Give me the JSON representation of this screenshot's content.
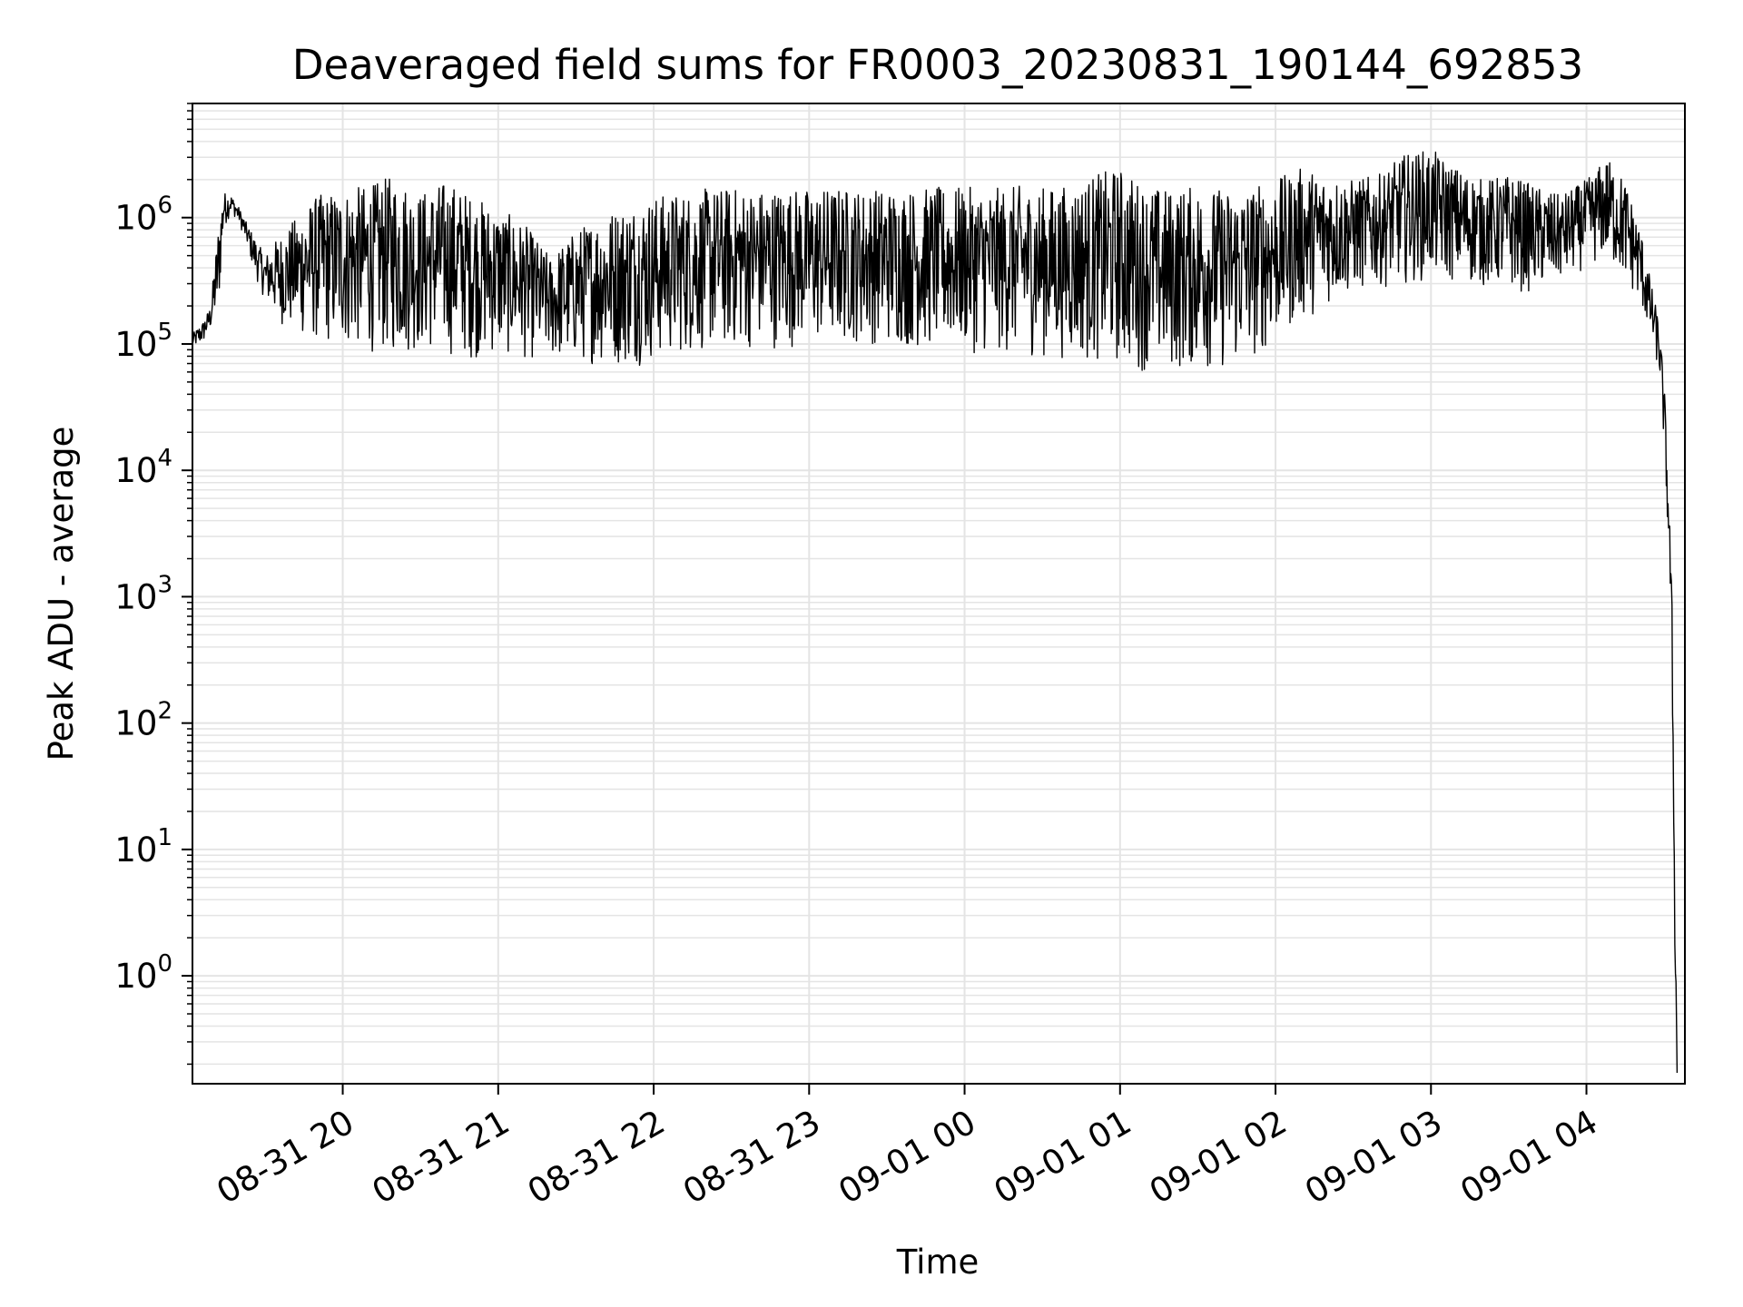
{
  "chart_data": {
    "type": "line",
    "title": "Deaveraged field sums for FR0003_20230831_190144_692853",
    "xlabel": "Time",
    "ylabel": "Peak ADU - average",
    "yscale": "log",
    "ylim": [
      0.14,
      8000000
    ],
    "xlim": [
      "2023-08-31 19:02",
      "2023-09-01 04:38"
    ],
    "grid": true,
    "y_ticks": [
      {
        "base": "10",
        "exp": "0",
        "value": 1
      },
      {
        "base": "10",
        "exp": "1",
        "value": 10
      },
      {
        "base": "10",
        "exp": "2",
        "value": 100
      },
      {
        "base": "10",
        "exp": "3",
        "value": 1000
      },
      {
        "base": "10",
        "exp": "4",
        "value": 10000
      },
      {
        "base": "10",
        "exp": "5",
        "value": 100000
      },
      {
        "base": "10",
        "exp": "6",
        "value": 1000000
      }
    ],
    "x_ticks": [
      {
        "label": "08-31 20",
        "time": "2023-08-31 20:00"
      },
      {
        "label": "08-31 21",
        "time": "2023-08-31 21:00"
      },
      {
        "label": "08-31 22",
        "time": "2023-08-31 22:00"
      },
      {
        "label": "08-31 23",
        "time": "2023-08-31 23:00"
      },
      {
        "label": "09-01 00",
        "time": "2023-09-01 00:00"
      },
      {
        "label": "09-01 01",
        "time": "2023-09-01 01:00"
      },
      {
        "label": "09-01 02",
        "time": "2023-09-01 02:00"
      },
      {
        "label": "09-01 03",
        "time": "2023-09-01 03:00"
      },
      {
        "label": "09-01 04",
        "time": "2023-09-01 04:00"
      }
    ],
    "series": [
      {
        "color": "#000000",
        "x": [
          "2023-08-31 19:02",
          "2023-08-31 19:06",
          "2023-08-31 19:09",
          "2023-08-31 19:12",
          "2023-08-31 19:14",
          "2023-08-31 19:17",
          "2023-08-31 19:20",
          "2023-08-31 19:23",
          "2023-08-31 19:26",
          "2023-08-31 19:30",
          "2023-08-31 19:35",
          "2023-08-31 19:40",
          "2023-08-31 19:45",
          "2023-08-31 19:50",
          "2023-08-31 19:55",
          "2023-08-31 20:00",
          "2023-08-31 20:10",
          "2023-08-31 20:20",
          "2023-08-31 20:30",
          "2023-08-31 20:40",
          "2023-08-31 20:50",
          "2023-08-31 21:00",
          "2023-08-31 21:10",
          "2023-08-31 21:20",
          "2023-08-31 21:30",
          "2023-08-31 21:40",
          "2023-08-31 21:50",
          "2023-08-31 22:00",
          "2023-08-31 22:10",
          "2023-08-31 22:20",
          "2023-08-31 22:30",
          "2023-08-31 22:40",
          "2023-08-31 22:50",
          "2023-08-31 23:00",
          "2023-08-31 23:10",
          "2023-08-31 23:20",
          "2023-08-31 23:30",
          "2023-08-31 23:40",
          "2023-08-31 23:50",
          "2023-09-01 00:00",
          "2023-09-01 00:10",
          "2023-09-01 00:20",
          "2023-09-01 00:30",
          "2023-09-01 00:40",
          "2023-09-01 00:50",
          "2023-09-01 01:00",
          "2023-09-01 01:10",
          "2023-09-01 01:20",
          "2023-09-01 01:30",
          "2023-09-01 01:40",
          "2023-09-01 01:50",
          "2023-09-01 02:00",
          "2023-09-01 02:10",
          "2023-09-01 02:20",
          "2023-09-01 02:30",
          "2023-09-01 02:40",
          "2023-09-01 02:50",
          "2023-09-01 03:00",
          "2023-09-01 03:10",
          "2023-09-01 03:20",
          "2023-09-01 03:30",
          "2023-09-01 03:40",
          "2023-09-01 03:50",
          "2023-09-01 04:00",
          "2023-09-01 04:08",
          "2023-09-01 04:15",
          "2023-09-01 04:21",
          "2023-09-01 04:25",
          "2023-09-01 04:28",
          "2023-09-01 04:30",
          "2023-09-01 04:32",
          "2023-09-01 04:33",
          "2023-09-01 04:34",
          "2023-09-01 04:35"
        ],
        "y_low": [
          92000,
          100000,
          130000,
          160000,
          800000,
          1100000,
          900000,
          600000,
          350000,
          220000,
          150000,
          120000,
          110000,
          100000,
          95000,
          90000,
          85000,
          80000,
          85000,
          80000,
          75000,
          80000,
          75000,
          72000,
          70000,
          68000,
          65000,
          70000,
          80000,
          85000,
          88000,
          90000,
          92000,
          95000,
          98000,
          100000,
          95000,
          90000,
          88000,
          85000,
          82000,
          80000,
          78000,
          75000,
          70000,
          65000,
          60000,
          58000,
          62000,
          60000,
          70000,
          100000,
          150000,
          200000,
          250000,
          280000,
          300000,
          320000,
          300000,
          280000,
          260000,
          250000,
          300000,
          400000,
          450000,
          300000,
          200000,
          100000,
          60000,
          15000,
          1500,
          300,
          2,
          0.15
        ],
        "y_high": [
          120000,
          150000,
          200000,
          900000,
          1600000,
          1500000,
          1200000,
          900000,
          700000,
          500000,
          700000,
          900000,
          1200000,
          1500000,
          1600000,
          1700000,
          1800000,
          2200000,
          1600000,
          2000000,
          1500000,
          1200000,
          900000,
          500000,
          800000,
          1100000,
          1300000,
          1500000,
          1600000,
          1700000,
          1750000,
          1700000,
          1750000,
          1700000,
          1750000,
          1700000,
          1750000,
          1700000,
          1750000,
          1750000,
          1700000,
          1800000,
          1750000,
          1800000,
          2200000,
          2500000,
          1800000,
          1700000,
          1800000,
          1700000,
          1800000,
          2000000,
          2500000,
          2200000,
          2000000,
          2200000,
          3200000,
          3500000,
          2500000,
          2000000,
          2200000,
          1800000,
          1500000,
          2000000,
          3000000,
          2000000,
          800000,
          300000,
          150000,
          50000,
          5000,
          1000,
          10,
          0.2
        ]
      }
    ]
  }
}
